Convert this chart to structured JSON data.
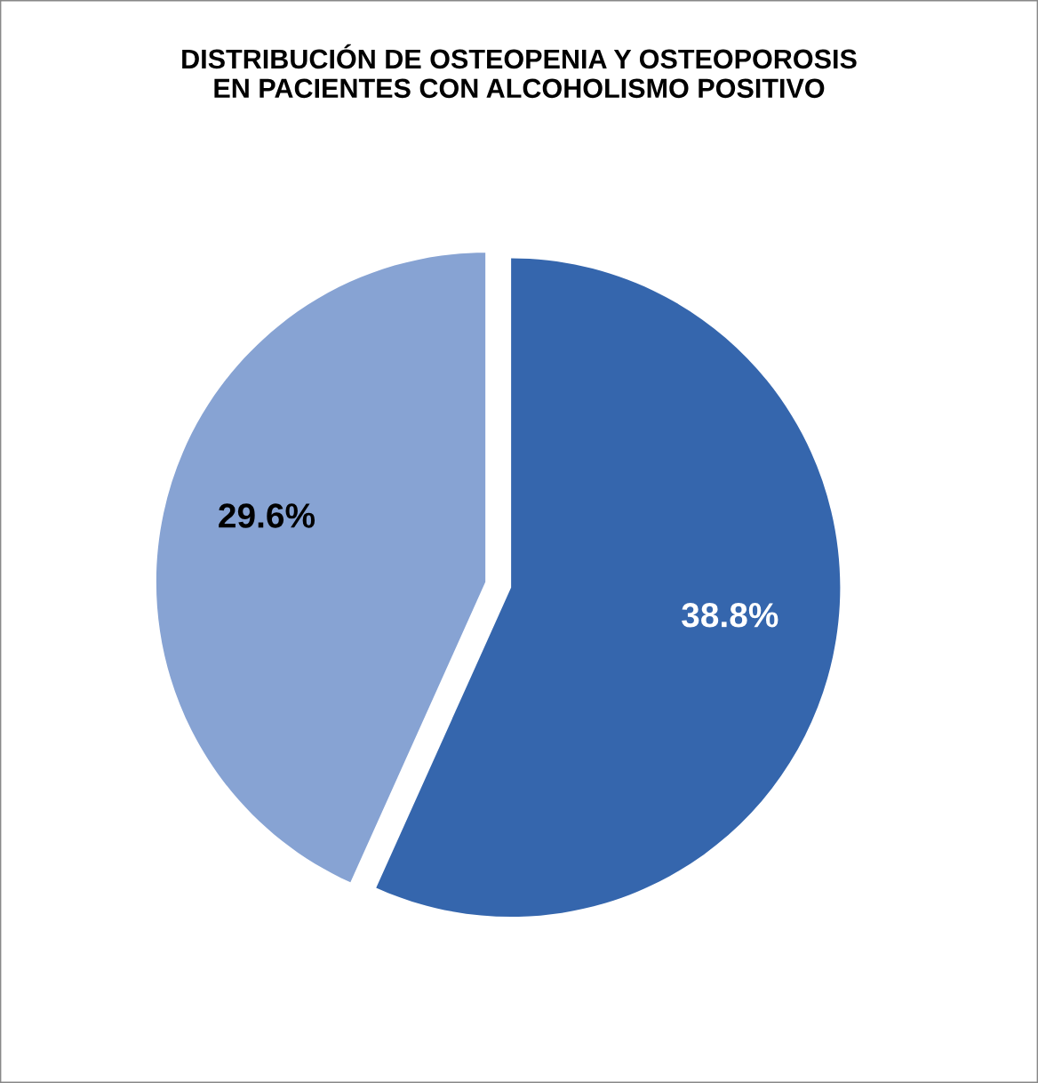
{
  "chart_data": {
    "type": "pie",
    "title": "DISTRIBUCIÓN DE OSTEOPENIA Y OSTEOPOROSIS\nEN PACIENTES CON ALCOHOLISMO POSITIVO",
    "categories": [
      null,
      null
    ],
    "values": [
      38.8,
      29.6
    ],
    "colors": [
      "#3566ad",
      "#87a3d3"
    ],
    "value_labels": [
      "38.8%",
      "29.6%"
    ]
  }
}
